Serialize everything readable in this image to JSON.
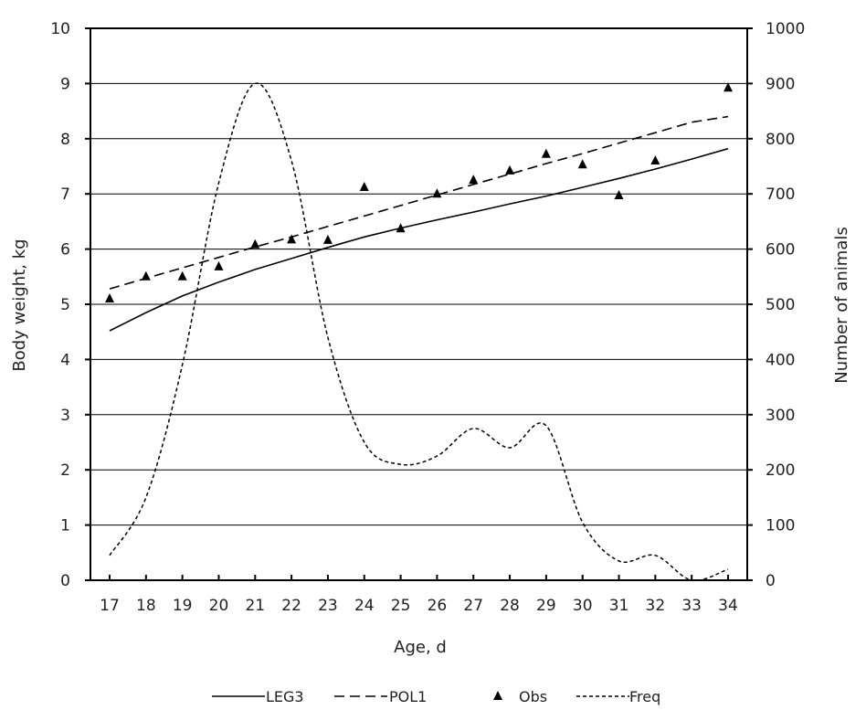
{
  "chart_data": {
    "type": "line",
    "title": "",
    "xlabel": "Age, d",
    "ylabel": "Body weight, kg",
    "y2label": "Number of animals",
    "x": [
      17,
      18,
      19,
      20,
      21,
      22,
      23,
      24,
      25,
      26,
      27,
      28,
      29,
      30,
      31,
      32,
      33,
      34
    ],
    "xticklabels": [
      "17",
      "18",
      "19",
      "20",
      "21",
      "22",
      "23",
      "24",
      "25",
      "26",
      "27",
      "28",
      "29",
      "30",
      "31",
      "32",
      "33",
      "34"
    ],
    "ylim": [
      0,
      10
    ],
    "y2lim": [
      0,
      1000
    ],
    "yticks": [
      "0",
      "1",
      "2",
      "3",
      "4",
      "5",
      "6",
      "7",
      "8",
      "9",
      "10"
    ],
    "y2ticks": [
      "0",
      "100",
      "200",
      "300",
      "400",
      "500",
      "600",
      "700",
      "800",
      "900",
      "1000"
    ],
    "grid": "horizontal",
    "legend_position": "bottom",
    "series": [
      {
        "name": "LEG3",
        "axis": "left",
        "style": "solid",
        "values": [
          4.52,
          4.85,
          5.15,
          5.4,
          5.63,
          5.83,
          6.03,
          6.22,
          6.38,
          6.53,
          6.67,
          6.82,
          6.96,
          7.12,
          7.28,
          7.45,
          7.63,
          7.82
        ]
      },
      {
        "name": "POL1",
        "axis": "left",
        "style": "dashed",
        "values": [
          5.28,
          5.47,
          5.66,
          5.85,
          6.04,
          6.22,
          6.41,
          6.6,
          6.79,
          6.98,
          7.17,
          7.36,
          7.55,
          7.73,
          7.92,
          8.11,
          8.3,
          8.4
        ]
      },
      {
        "name": "Obs",
        "axis": "left",
        "style": "marker-triangle",
        "values": [
          5.1,
          5.5,
          5.5,
          5.68,
          6.08,
          6.17,
          6.16,
          7.12,
          6.37,
          7.0,
          7.25,
          7.42,
          7.72,
          7.53,
          6.97,
          7.6,
          null,
          8.92
        ]
      },
      {
        "name": "Freq",
        "axis": "right",
        "style": "short-dash",
        "values": [
          45,
          150,
          390,
          720,
          900,
          760,
          440,
          250,
          210,
          225,
          275,
          240,
          280,
          105,
          35,
          45,
          0,
          20
        ]
      }
    ]
  }
}
